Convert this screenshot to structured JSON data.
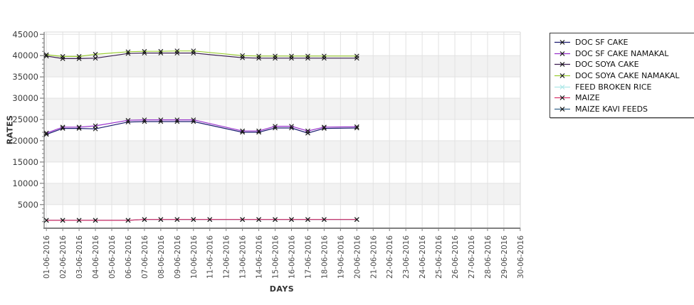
{
  "chart_data": {
    "type": "line",
    "title": "",
    "xlabel": "DAYS",
    "ylabel": "RATES",
    "x_categories": [
      "01-06-2016",
      "02-06-2016",
      "03-06-2016",
      "04-06-2016",
      "05-06-2016",
      "06-06-2016",
      "07-06-2016",
      "08-06-2016",
      "09-06-2016",
      "10-06-2016",
      "11-06-2016",
      "12-06-2016",
      "13-06-2016",
      "14-06-2016",
      "15-06-2016",
      "16-06-2016",
      "17-06-2016",
      "18-06-2016",
      "19-06-2016",
      "20-06-2016",
      "21-06-2016",
      "22-06-2016",
      "23-06-2016",
      "24-06-2016",
      "25-06-2016",
      "26-06-2016",
      "27-06-2016",
      "28-06-2016",
      "29-06-2016",
      "30-06-2016"
    ],
    "ylim": [
      0,
      45000
    ],
    "yticks": [
      5000,
      10000,
      15000,
      20000,
      25000,
      30000,
      35000,
      40000,
      45000
    ],
    "ytick_minor_step": 1000,
    "grid": true,
    "band_colors": [
      "#ffffff",
      "#f2f2f2"
    ],
    "gridline_color": "#e2e2e2",
    "axis_color": "#808080",
    "marker": "x",
    "marker_color": "#141414",
    "legend_position": "right",
    "series": [
      {
        "name": "DOC SF CAKE",
        "color": "#1a1a70",
        "zorder": 1,
        "values": [
          21500,
          22900,
          22900,
          22800,
          null,
          24400,
          24500,
          24500,
          24500,
          24500,
          null,
          null,
          22000,
          22000,
          23000,
          23000,
          21800,
          22900,
          null,
          23000,
          null,
          null,
          null,
          null,
          null,
          null,
          null,
          null,
          null,
          null
        ]
      },
      {
        "name": "DOC SF CAKE NAMAKAL",
        "color": "#9932cc",
        "zorder": 2,
        "values": [
          21800,
          23200,
          23200,
          23500,
          null,
          24800,
          24900,
          24900,
          24900,
          24900,
          null,
          null,
          22300,
          22300,
          23400,
          23400,
          22300,
          23200,
          null,
          23300,
          null,
          null,
          null,
          null,
          null,
          null,
          null,
          null,
          null,
          null
        ]
      },
      {
        "name": "DOC SOYA CAKE",
        "color": "#3a1d50",
        "zorder": 3,
        "values": [
          39900,
          39300,
          39300,
          39400,
          null,
          40500,
          40600,
          40600,
          40600,
          40600,
          null,
          null,
          39500,
          39400,
          39400,
          39400,
          39400,
          39400,
          null,
          39400,
          null,
          null,
          null,
          null,
          null,
          null,
          null,
          null,
          null,
          null
        ]
      },
      {
        "name": "DOC SOYA CAKE NAMAKAL",
        "color": "#9acd32",
        "zorder": 4,
        "values": [
          40200,
          39800,
          39800,
          40300,
          null,
          40900,
          41000,
          41000,
          41100,
          41100,
          null,
          null,
          40000,
          39900,
          39900,
          39900,
          39900,
          39900,
          null,
          39900,
          null,
          null,
          null,
          null,
          null,
          null,
          null,
          null,
          null,
          null
        ]
      },
      {
        "name": "FEED BROKEN RICE",
        "color": "#aee8e8",
        "marker_color": "#aee8e8",
        "zorder": 5,
        "values": [
          1300,
          1300,
          1300,
          1300,
          null,
          1300,
          1500,
          1500,
          1500,
          1500,
          1500,
          null,
          1500,
          1500,
          1500,
          1500,
          1500,
          1500,
          null,
          1500,
          null,
          null,
          null,
          null,
          null,
          null,
          null,
          null,
          null,
          null
        ]
      },
      {
        "name": "MAIZE",
        "color": "#d9356e",
        "zorder": 7,
        "values": [
          1300,
          1300,
          1300,
          1300,
          null,
          1300,
          1500,
          1500,
          1500,
          1500,
          1500,
          null,
          1500,
          1500,
          1500,
          1500,
          1500,
          1500,
          null,
          1500,
          null,
          null,
          null,
          null,
          null,
          null,
          null,
          null,
          null,
          null
        ]
      },
      {
        "name": "MAIZE KAVI FEEDS",
        "color": "#36648b",
        "zorder": 6,
        "values": [
          1300,
          1300,
          1300,
          1300,
          null,
          1300,
          1500,
          1500,
          1500,
          1500,
          1500,
          null,
          1500,
          1500,
          1500,
          1500,
          1500,
          1500,
          null,
          1500,
          null,
          null,
          null,
          null,
          null,
          null,
          null,
          null,
          null,
          null
        ]
      }
    ]
  }
}
